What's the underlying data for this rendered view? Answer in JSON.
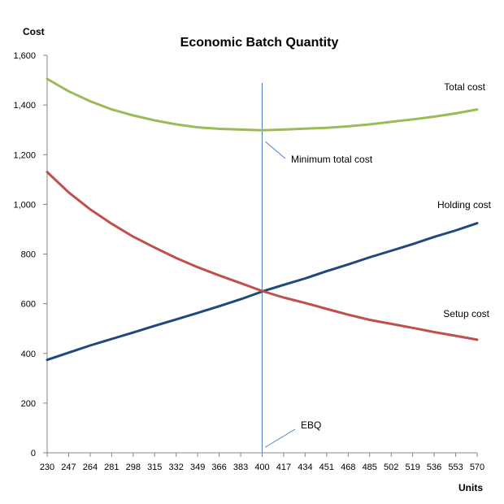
{
  "chart_data": {
    "type": "line",
    "title": "Economic Batch Quantity",
    "xlabel": "Units",
    "ylabel": "Cost",
    "x": [
      230,
      247,
      264,
      281,
      298,
      315,
      332,
      349,
      366,
      383,
      400,
      417,
      434,
      451,
      468,
      485,
      502,
      519,
      536,
      553,
      570
    ],
    "x_tick_labels": [
      "230",
      "247",
      "264",
      "281",
      "298",
      "315",
      "332",
      "349",
      "366",
      "383",
      "400",
      "417",
      "434",
      "451",
      "468",
      "485",
      "502",
      "519",
      "536",
      "553",
      "570"
    ],
    "ylim": [
      0,
      1600
    ],
    "y_ticks": [
      0,
      200,
      400,
      600,
      800,
      1000,
      1200,
      1400,
      1600
    ],
    "y_tick_labels": [
      "0",
      "200",
      "400",
      "600",
      "800",
      "1,000",
      "1,200",
      "1,400",
      "1,600"
    ],
    "grid": false,
    "series": [
      {
        "name": "Total cost",
        "color": "#9BBB59",
        "values": [
          1505,
          1455,
          1415,
          1382,
          1358,
          1338,
          1322,
          1310,
          1304,
          1301,
          1298,
          1301,
          1305,
          1308,
          1314,
          1322,
          1332,
          1342,
          1353,
          1366,
          1382
        ]
      },
      {
        "name": "Holding cost",
        "color": "#1F497D",
        "values": [
          374,
          403,
          432,
          458,
          484,
          511,
          537,
          563,
          590,
          618,
          649,
          676,
          702,
          731,
          758,
          787,
          813,
          840,
          869,
          895,
          924
        ]
      },
      {
        "name": "Setup cost",
        "color": "#C0504D",
        "values": [
          1130,
          1048,
          980,
          922,
          870,
          826,
          784,
          747,
          714,
          683,
          651,
          625,
          603,
          579,
          556,
          535,
          519,
          503,
          486,
          471,
          455
        ]
      }
    ],
    "annotations": [
      {
        "text": "Minimum total cost",
        "x": 400,
        "y": 1298
      },
      {
        "text": "EBQ",
        "x": 400,
        "y": 0
      }
    ],
    "reference_line": {
      "x": 400,
      "color": "#4F81BD"
    }
  }
}
